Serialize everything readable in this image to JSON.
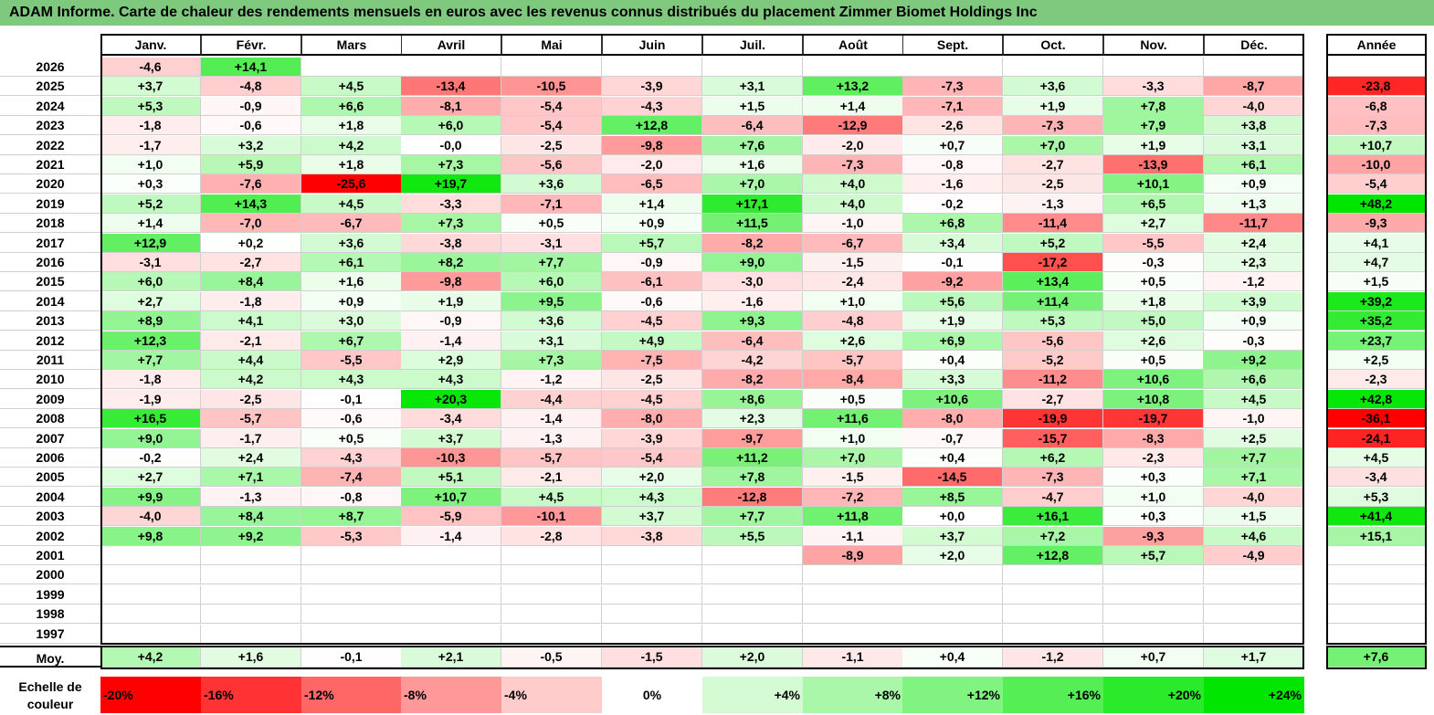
{
  "title": "ADAM Informe. Carte de chaleur des rendements mensuels en euros avec les revenus connus distribués du placement Zimmer Biomet Holdings Inc",
  "chart_data": {
    "type": "heatmap",
    "title": "ADAM Informe. Carte de chaleur des rendements mensuels en euros avec les revenus connus distribués du placement Zimmer Biomet Holdings Inc",
    "columns": [
      "Janv.",
      "Févr.",
      "Mars",
      "Avril",
      "Mai",
      "Juin",
      "Juil.",
      "Août",
      "Sept.",
      "Oct.",
      "Nov.",
      "Déc."
    ],
    "year_header": "Année",
    "rows": [
      {
        "year": "2026",
        "values": [
          "-4,6",
          "+14,1",
          "",
          "",
          "",
          "",
          "",
          "",
          "",
          "",
          "",
          ""
        ],
        "annual": ""
      },
      {
        "year": "2025",
        "values": [
          "+3,7",
          "-4,8",
          "+4,5",
          "-13,4",
          "-10,5",
          "-3,9",
          "+3,1",
          "+13,2",
          "-7,3",
          "+3,6",
          "-3,3",
          "-8,7"
        ],
        "annual": "-23,8"
      },
      {
        "year": "2024",
        "values": [
          "+5,3",
          "-0,9",
          "+6,6",
          "-8,1",
          "-5,4",
          "-4,3",
          "+1,5",
          "+1,4",
          "-7,1",
          "+1,9",
          "+7,8",
          "-4,0"
        ],
        "annual": "-6,8"
      },
      {
        "year": "2023",
        "values": [
          "-1,8",
          "-0,6",
          "+1,8",
          "+6,0",
          "-5,4",
          "+12,8",
          "-6,4",
          "-12,9",
          "-2,6",
          "-7,3",
          "+7,9",
          "+3,8"
        ],
        "annual": "-7,3"
      },
      {
        "year": "2022",
        "values": [
          "-1,7",
          "+3,2",
          "+4,2",
          "-0,0",
          "-2,5",
          "-9,8",
          "+7,6",
          "-2,0",
          "+0,7",
          "+7,0",
          "+1,9",
          "+3,1"
        ],
        "annual": "+10,7"
      },
      {
        "year": "2021",
        "values": [
          "+1,0",
          "+5,9",
          "+1,8",
          "+7,3",
          "-5,6",
          "-2,0",
          "+1,6",
          "-7,3",
          "-0,8",
          "-2,7",
          "-13,9",
          "+6,1"
        ],
        "annual": "-10,0"
      },
      {
        "year": "2020",
        "values": [
          "+0,3",
          "-7,6",
          "-25,6",
          "+19,7",
          "+3,6",
          "-6,5",
          "+7,0",
          "+4,0",
          "-1,6",
          "-2,5",
          "+10,1",
          "+0,9"
        ],
        "annual": "-5,4"
      },
      {
        "year": "2019",
        "values": [
          "+5,2",
          "+14,3",
          "+4,5",
          "-3,3",
          "-7,1",
          "+1,4",
          "+17,1",
          "+4,0",
          "-0,2",
          "-1,3",
          "+6,5",
          "+1,3"
        ],
        "annual": "+48,2"
      },
      {
        "year": "2018",
        "values": [
          "+1,4",
          "-7,0",
          "-6,7",
          "+7,3",
          "+0,5",
          "+0,9",
          "+11,5",
          "-1,0",
          "+6,8",
          "-11,4",
          "+2,7",
          "-11,7"
        ],
        "annual": "-9,3"
      },
      {
        "year": "2017",
        "values": [
          "+12,9",
          "+0,2",
          "+3,6",
          "-3,8",
          "-3,1",
          "+5,7",
          "-8,2",
          "-6,7",
          "+3,4",
          "+5,2",
          "-5,5",
          "+2,4"
        ],
        "annual": "+4,1"
      },
      {
        "year": "2016",
        "values": [
          "-3,1",
          "-2,7",
          "+6,1",
          "+8,2",
          "+7,7",
          "-0,9",
          "+9,0",
          "-1,5",
          "-0,1",
          "-17,2",
          "-0,3",
          "+2,3"
        ],
        "annual": "+4,7"
      },
      {
        "year": "2015",
        "values": [
          "+6,0",
          "+8,4",
          "+1,6",
          "-9,8",
          "+6,0",
          "-6,1",
          "-3,0",
          "-2,4",
          "-9,2",
          "+13,4",
          "+0,5",
          "-1,2"
        ],
        "annual": "+1,5"
      },
      {
        "year": "2014",
        "values": [
          "+2,7",
          "-1,8",
          "+0,9",
          "+1,9",
          "+9,5",
          "-0,6",
          "-1,6",
          "+1,0",
          "+5,6",
          "+11,4",
          "+1,8",
          "+3,9"
        ],
        "annual": "+39,2"
      },
      {
        "year": "2013",
        "values": [
          "+8,9",
          "+4,1",
          "+3,0",
          "-0,9",
          "+3,6",
          "-4,5",
          "+9,3",
          "-4,8",
          "+1,9",
          "+5,3",
          "+5,0",
          "+0,9"
        ],
        "annual": "+35,2"
      },
      {
        "year": "2012",
        "values": [
          "+12,3",
          "-2,1",
          "+6,7",
          "-1,4",
          "+3,1",
          "+4,9",
          "-6,4",
          "+2,6",
          "+6,9",
          "-5,6",
          "+2,6",
          "-0,3"
        ],
        "annual": "+23,7"
      },
      {
        "year": "2011",
        "values": [
          "+7,7",
          "+4,4",
          "-5,5",
          "+2,9",
          "+7,3",
          "-7,5",
          "-4,2",
          "-5,7",
          "+0,4",
          "-5,2",
          "+0,5",
          "+9,2"
        ],
        "annual": "+2,5"
      },
      {
        "year": "2010",
        "values": [
          "-1,8",
          "+4,2",
          "+4,3",
          "+4,3",
          "-1,2",
          "-2,5",
          "-8,2",
          "-8,4",
          "+3,3",
          "-11,2",
          "+10,6",
          "+6,6"
        ],
        "annual": "-2,3"
      },
      {
        "year": "2009",
        "values": [
          "-1,9",
          "-2,5",
          "-0,1",
          "+20,3",
          "-4,4",
          "-4,5",
          "+8,6",
          "+0,5",
          "+10,6",
          "-2,7",
          "+10,8",
          "+4,5"
        ],
        "annual": "+42,8"
      },
      {
        "year": "2008",
        "values": [
          "+16,5",
          "-5,7",
          "-0,6",
          "-3,4",
          "-1,4",
          "-8,0",
          "+2,3",
          "+11,6",
          "-8,0",
          "-19,9",
          "-19,7",
          "-1,0"
        ],
        "annual": "-36,1"
      },
      {
        "year": "2007",
        "values": [
          "+9,0",
          "-1,7",
          "+0,5",
          "+3,7",
          "-1,3",
          "-3,9",
          "-9,7",
          "+1,0",
          "-0,7",
          "-15,7",
          "-8,3",
          "+2,5"
        ],
        "annual": "-24,1"
      },
      {
        "year": "2006",
        "values": [
          "-0,2",
          "+2,4",
          "-4,3",
          "-10,3",
          "-5,7",
          "-5,4",
          "+11,2",
          "+7,0",
          "+0,4",
          "+6,2",
          "-2,3",
          "+7,7"
        ],
        "annual": "+4,5"
      },
      {
        "year": "2005",
        "values": [
          "+2,7",
          "+7,1",
          "-7,4",
          "+5,1",
          "-2,1",
          "+2,0",
          "+7,8",
          "-1,5",
          "-14,5",
          "-7,3",
          "+0,3",
          "+7,1"
        ],
        "annual": "-3,4"
      },
      {
        "year": "2004",
        "values": [
          "+9,9",
          "-1,3",
          "-0,8",
          "+10,7",
          "+4,5",
          "+4,3",
          "-12,8",
          "-7,2",
          "+8,5",
          "-4,7",
          "+1,0",
          "-4,0"
        ],
        "annual": "+5,3"
      },
      {
        "year": "2003",
        "values": [
          "-4,0",
          "+8,4",
          "+8,7",
          "-5,9",
          "-10,1",
          "+3,7",
          "+7,7",
          "+11,8",
          "+0,0",
          "+16,1",
          "+0,3",
          "+1,5"
        ],
        "annual": "+41,4"
      },
      {
        "year": "2002",
        "values": [
          "+9,8",
          "+9,2",
          "-5,3",
          "-1,4",
          "-2,8",
          "-3,8",
          "+5,5",
          "-1,1",
          "+3,7",
          "+7,2",
          "-9,3",
          "+4,6"
        ],
        "annual": "+15,1"
      },
      {
        "year": "2001",
        "values": [
          "",
          "",
          "",
          "",
          "",
          "",
          "",
          "-8,9",
          "+2,0",
          "+12,8",
          "+5,7",
          "-4,9"
        ],
        "annual": ""
      },
      {
        "year": "2000",
        "values": [
          "",
          "",
          "",
          "",
          "",
          "",
          "",
          "",
          "",
          "",
          "",
          ""
        ],
        "annual": ""
      },
      {
        "year": "1999",
        "values": [
          "",
          "",
          "",
          "",
          "",
          "",
          "",
          "",
          "",
          "",
          "",
          ""
        ],
        "annual": ""
      },
      {
        "year": "1998",
        "values": [
          "",
          "",
          "",
          "",
          "",
          "",
          "",
          "",
          "",
          "",
          "",
          ""
        ],
        "annual": ""
      },
      {
        "year": "1997",
        "values": [
          "",
          "",
          "",
          "",
          "",
          "",
          "",
          "",
          "",
          "",
          "",
          ""
        ],
        "annual": ""
      }
    ],
    "average": {
      "label": "Moy.",
      "values": [
        "+4,2",
        "+1,6",
        "-0,1",
        "+2,1",
        "-0,5",
        "-1,5",
        "+2,0",
        "-1,1",
        "+0,4",
        "-1,2",
        "+0,7",
        "+1,7"
      ],
      "annual": "+7,6"
    },
    "scale": {
      "label_line1": "Echelle de",
      "label_line2": "couleur",
      "steps": [
        "-20%",
        "-16%",
        "-12%",
        "-8%",
        "-4%",
        "0%",
        "+4%",
        "+8%",
        "+12%",
        "+16%",
        "+20%",
        "+24%"
      ],
      "step_values": [
        -20,
        -16,
        -12,
        -8,
        -4,
        0,
        4,
        8,
        12,
        16,
        20,
        24
      ]
    },
    "colors": {
      "negative": "#ff0000",
      "positive": "#00e000",
      "neutral": "#ffffff",
      "title_bar": "#7fc97f"
    }
  }
}
